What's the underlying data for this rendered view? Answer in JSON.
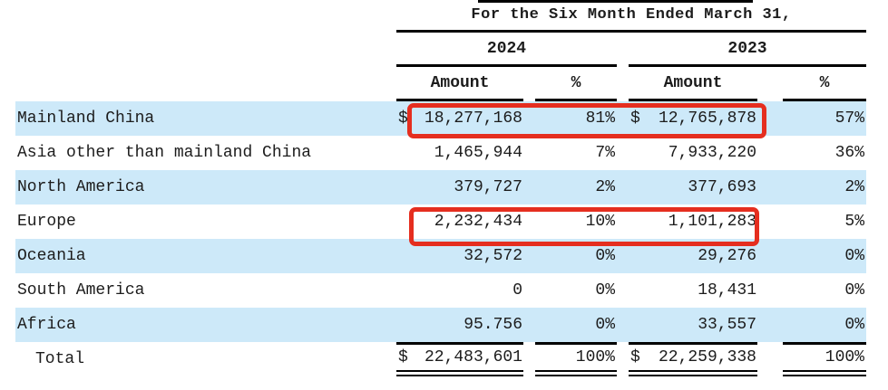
{
  "colors": {
    "row_highlight": "#cde9f9",
    "annotation_red": "#e52e1f",
    "line": "#000000"
  },
  "header": {
    "title": "For the Six Month Ended March 31,",
    "year_2024": "2024",
    "year_2023": "2023",
    "amount_label": "Amount",
    "percent_label": "%"
  },
  "currency": "$",
  "rows": [
    {
      "label": "Mainland China",
      "amount_2024": "18,277,168",
      "pct_2024": "81%",
      "amount_2023": "12,765,878",
      "pct_2023": "57%"
    },
    {
      "label": "Asia other than mainland China",
      "amount_2024": "1,465,944",
      "pct_2024": "7%",
      "amount_2023": "7,933,220",
      "pct_2023": "36%"
    },
    {
      "label": "North America",
      "amount_2024": "379,727",
      "pct_2024": "2%",
      "amount_2023": "377,693",
      "pct_2023": "2%"
    },
    {
      "label": "Europe",
      "amount_2024": "2,232,434",
      "pct_2024": "10%",
      "amount_2023": "1,101,283",
      "pct_2023": "5%"
    },
    {
      "label": "Oceania",
      "amount_2024": "32,572",
      "pct_2024": "0%",
      "amount_2023": "29,276",
      "pct_2023": "0%"
    },
    {
      "label": "South America",
      "amount_2024": "0",
      "pct_2024": "0%",
      "amount_2023": "18,431",
      "pct_2023": "0%"
    },
    {
      "label": "Africa",
      "amount_2024": "95.756",
      "pct_2024": "0%",
      "amount_2023": "33,557",
      "pct_2023": "0%"
    }
  ],
  "total": {
    "label": "Total",
    "amount_2024": "22,483,601",
    "pct_2024": "100%",
    "amount_2023": "22,259,338",
    "pct_2023": "100%"
  }
}
